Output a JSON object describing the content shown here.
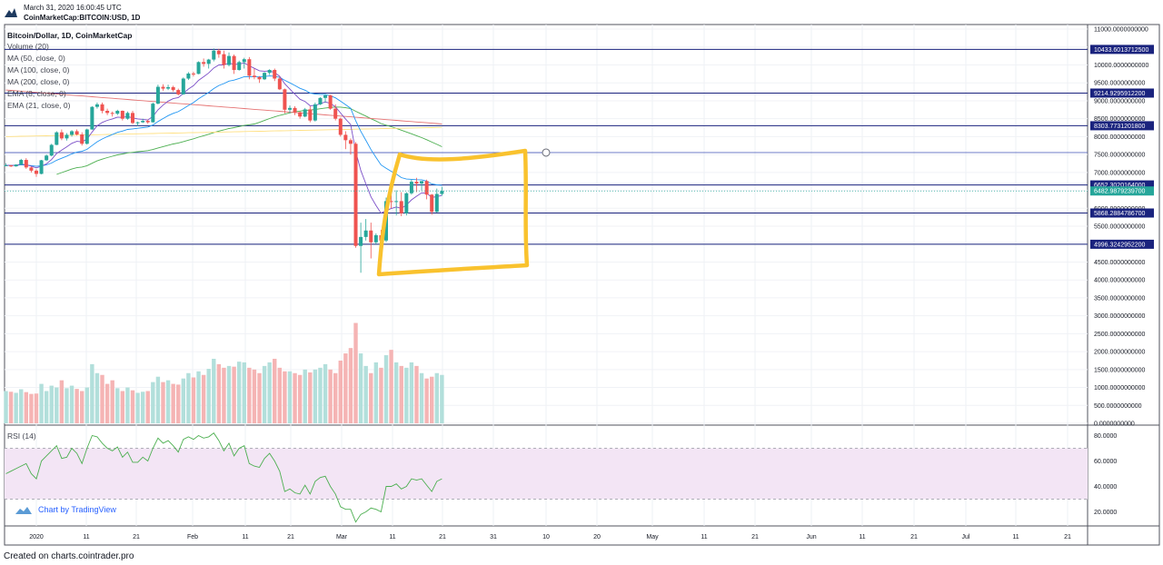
{
  "header": {
    "date": "March 31, 2020 16:00:45 UTC",
    "symbol": "CoinMarketCap:BITCOIN:USD, 1D"
  },
  "footer": {
    "credit": "Created on charts.cointrader.pro"
  },
  "watermark": {
    "label": "Chart by TradingView"
  },
  "colors": {
    "up": "#26a69a",
    "down": "#ef5350",
    "vol_up": "#b2dfdb",
    "vol_down": "#f5b4b4",
    "hline": "#1a237e",
    "ema8": "#7b4fc8",
    "ema21": "#2196f3",
    "ma50": "#4caf50",
    "ma100": "#e57373",
    "ma200": "#ffe082",
    "rsi": "#4caf50",
    "rsi_band": "#f3e5f5",
    "highlight": "#f9c22e",
    "last_price": "#26a69a"
  },
  "chart_data": {
    "type": "candlestick",
    "title": "Bitcoin/Dollar, 1D, CoinMarketCap",
    "overlay_legend": [
      "Volume (20)",
      "MA (50, close, 0)",
      "MA (100, close, 0)",
      "MA (200, close, 0)",
      "EMA (8, close, 0)",
      "EMA (21, close, 0)"
    ],
    "x_tick_labels": [
      "2020",
      "11",
      "21",
      "Feb",
      "11",
      "21",
      "Mar",
      "11",
      "21",
      "31",
      "10",
      "20",
      "May",
      "11",
      "21",
      "Jun",
      "11",
      "21",
      "Jul",
      "11",
      "21"
    ],
    "price_axis": {
      "ylim": [
        0,
        11000
      ],
      "ticks": [
        "11000.0000000000",
        "10500.0000000000",
        "10000.0000000000",
        "9500.0000000000",
        "9000.0000000000",
        "8500.0000000000",
        "8000.0000000000",
        "7500.0000000000",
        "7000.0000000000",
        "6500.0000000000",
        "6000.0000000000",
        "5500.0000000000",
        "5000.0000000000",
        "4500.0000000000",
        "4000.0000000000",
        "3500.0000000000",
        "3000.0000000000",
        "2500.0000000000",
        "2000.0000000000",
        "1500.0000000000",
        "1000.0000000000",
        "500.0000000000",
        "0.0000000000"
      ]
    },
    "horizontal_levels": [
      {
        "value": 10433.60137125,
        "label": "10433.6013712500"
      },
      {
        "value": 9214.92959122,
        "label": "9214.9295912200"
      },
      {
        "value": 8303.77312018,
        "label": "8303.7731201800"
      },
      {
        "value": 7555,
        "label": ""
      },
      {
        "value": 6652.3020164,
        "label": "6652.3020164000"
      },
      {
        "value": 5868.28847867,
        "label": "5868.2884786700"
      },
      {
        "value": 4996.32429522,
        "label": "4996.3242952200"
      }
    ],
    "last_price": {
      "value": 6482.98792397,
      "label": "6482.9879239700"
    },
    "candles_ohlc": [
      [
        7195,
        7255,
        7175,
        7200
      ],
      [
        7200,
        7212,
        7150,
        7170
      ],
      [
        7170,
        7230,
        7160,
        7220
      ],
      [
        7220,
        7380,
        7210,
        7350
      ],
      [
        7350,
        7400,
        7100,
        7140
      ],
      [
        7140,
        7160,
        7000,
        7050
      ],
      [
        7050,
        7090,
        6880,
        6960
      ],
      [
        6960,
        7350,
        6950,
        7340
      ],
      [
        7340,
        7500,
        7320,
        7470
      ],
      [
        7470,
        7800,
        7450,
        7770
      ],
      [
        7770,
        8150,
        7760,
        8120
      ],
      [
        8120,
        8200,
        7900,
        7950
      ],
      [
        7950,
        8100,
        7890,
        8050
      ],
      [
        8050,
        8180,
        8000,
        8150
      ],
      [
        8150,
        8200,
        8030,
        8060
      ],
      [
        8060,
        8120,
        7750,
        7800
      ],
      [
        7800,
        8220,
        7780,
        8200
      ],
      [
        8200,
        8850,
        8190,
        8830
      ],
      [
        8830,
        8950,
        8780,
        8900
      ],
      [
        8900,
        8950,
        8650,
        8720
      ],
      [
        8720,
        8780,
        8600,
        8660
      ],
      [
        8660,
        8700,
        8560,
        8640
      ],
      [
        8640,
        8750,
        8600,
        8720
      ],
      [
        8720,
        8730,
        8450,
        8500
      ],
      [
        8500,
        8700,
        8470,
        8660
      ],
      [
        8660,
        8720,
        8350,
        8380
      ],
      [
        8380,
        8420,
        8300,
        8400
      ],
      [
        8400,
        8500,
        8380,
        8440
      ],
      [
        8440,
        8480,
        8360,
        8400
      ],
      [
        8400,
        8950,
        8390,
        8920
      ],
      [
        8920,
        9450,
        8900,
        9390
      ],
      [
        9390,
        9460,
        9280,
        9340
      ],
      [
        9340,
        9450,
        9300,
        9380
      ],
      [
        9380,
        9420,
        9250,
        9300
      ],
      [
        9300,
        9340,
        9150,
        9180
      ],
      [
        9180,
        9650,
        9170,
        9620
      ],
      [
        9620,
        9800,
        9580,
        9760
      ],
      [
        9760,
        9810,
        9680,
        9750
      ],
      [
        9750,
        10100,
        9740,
        10080
      ],
      [
        10080,
        10180,
        9950,
        10030
      ],
      [
        10030,
        10170,
        9900,
        10150
      ],
      [
        10150,
        10460,
        10100,
        10400
      ],
      [
        10400,
        10450,
        10200,
        10300
      ],
      [
        10300,
        10400,
        9900,
        10000
      ],
      [
        10000,
        10350,
        9960,
        10250
      ],
      [
        10250,
        10290,
        9750,
        9860
      ],
      [
        9860,
        10120,
        9840,
        10080
      ],
      [
        10080,
        10200,
        9900,
        10160
      ],
      [
        10160,
        10220,
        9600,
        9700
      ],
      [
        9700,
        9900,
        9600,
        9660
      ],
      [
        9660,
        9690,
        9500,
        9600
      ],
      [
        9600,
        9800,
        9580,
        9780
      ],
      [
        9780,
        9880,
        9720,
        9860
      ],
      [
        9860,
        9900,
        9550,
        9620
      ],
      [
        9620,
        9680,
        9300,
        9320
      ],
      [
        9320,
        9340,
        8650,
        8750
      ],
      [
        8750,
        8870,
        8650,
        8800
      ],
      [
        8800,
        8850,
        8600,
        8680
      ],
      [
        8680,
        8700,
        8500,
        8560
      ],
      [
        8560,
        8800,
        8540,
        8760
      ],
      [
        8760,
        8850,
        8400,
        8450
      ],
      [
        8450,
        8950,
        8420,
        8900
      ],
      [
        8900,
        9100,
        8880,
        9080
      ],
      [
        9080,
        9180,
        8950,
        9150
      ],
      [
        9150,
        9170,
        8750,
        8780
      ],
      [
        8780,
        8900,
        8450,
        8500
      ],
      [
        8500,
        8530,
        8000,
        8050
      ],
      [
        8050,
        8150,
        7650,
        7900
      ],
      [
        7900,
        7950,
        7500,
        7800
      ],
      [
        7800,
        7850,
        4900,
        4950
      ],
      [
        4950,
        5600,
        4200,
        5200
      ],
      [
        5200,
        5700,
        5100,
        5380
      ],
      [
        5380,
        5600,
        4600,
        5050
      ],
      [
        5050,
        5300,
        5000,
        5250
      ],
      [
        5250,
        5400,
        4950,
        5100
      ],
      [
        5100,
        6300,
        5050,
        6200
      ],
      [
        6200,
        6400,
        6000,
        6180
      ],
      [
        6180,
        6500,
        5800,
        6200
      ],
      [
        6200,
        6450,
        5780,
        5860
      ],
      [
        5860,
        6450,
        5800,
        6420
      ],
      [
        6420,
        6800,
        6380,
        6740
      ],
      [
        6740,
        6850,
        6450,
        6690
      ],
      [
        6690,
        6750,
        6500,
        6760
      ],
      [
        6760,
        6800,
        6250,
        6380
      ],
      [
        6380,
        6400,
        5820,
        5900
      ],
      [
        5900,
        6550,
        5880,
        6400
      ],
      [
        6400,
        6600,
        6350,
        6483
      ]
    ],
    "volume": [
      900,
      880,
      850,
      950,
      870,
      820,
      830,
      1100,
      900,
      1050,
      1000,
      1200,
      980,
      1050,
      960,
      900,
      1000,
      1650,
      1400,
      1350,
      1100,
      1200,
      980,
      900,
      1000,
      920,
      850,
      880,
      900,
      1150,
      1300,
      1150,
      1200,
      1100,
      1080,
      1250,
      1400,
      1280,
      1450,
      1350,
      1520,
      1800,
      1650,
      1550,
      1600,
      1580,
      1720,
      1700,
      1550,
      1500,
      1400,
      1600,
      1700,
      1800,
      1550,
      1450,
      1450,
      1400,
      1350,
      1500,
      1420,
      1500,
      1550,
      1650,
      1500,
      1400,
      1750,
      1950,
      2100,
      2800,
      1950,
      1600,
      1400,
      1700,
      1550,
      1900,
      2050,
      1700,
      1600,
      1550,
      1700,
      1600,
      1400,
      1250,
      1300,
      1400,
      1350
    ],
    "rsi": {
      "label": "RSI (14)",
      "ticks": [
        "80.0000",
        "60.0000",
        "40.0000",
        "20.0000"
      ],
      "band": [
        30,
        70
      ],
      "values": [
        50,
        52,
        54,
        56,
        58,
        50,
        46,
        60,
        64,
        68,
        72,
        62,
        63,
        70,
        66,
        58,
        70,
        80,
        79,
        74,
        70,
        68,
        71,
        63,
        67,
        59,
        59,
        63,
        60,
        70,
        78,
        74,
        76,
        72,
        67,
        77,
        79,
        77,
        80,
        78,
        79,
        82,
        76,
        68,
        74,
        64,
        70,
        72,
        58,
        56,
        55,
        62,
        66,
        60,
        52,
        36,
        38,
        35,
        34,
        41,
        34,
        44,
        47,
        48,
        40,
        34,
        24,
        22,
        22,
        12,
        18,
        20,
        23,
        22,
        20,
        40,
        40,
        42,
        38,
        40,
        46,
        45,
        46,
        41,
        36,
        44,
        46
      ]
    }
  }
}
